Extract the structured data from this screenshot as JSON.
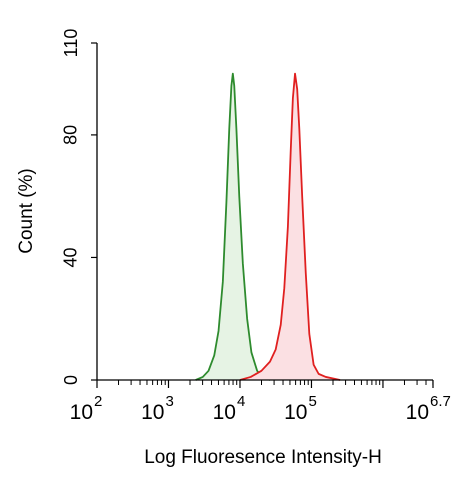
{
  "chart_data": {
    "type": "area",
    "title": "",
    "xlabel": "Log Fluoresence Intensity-H",
    "ylabel": "Count  (%)",
    "x_scale": "log",
    "xlim": [
      2,
      6.7
    ],
    "ylim": [
      0,
      110
    ],
    "y_ticks": [
      {
        "value": 0,
        "label": "0"
      },
      {
        "value": 40,
        "label": "40"
      },
      {
        "value": 80,
        "label": "80"
      },
      {
        "value": 110,
        "label": "110"
      }
    ],
    "x_ticks": [
      {
        "value": 2,
        "base": "10",
        "exp": "2"
      },
      {
        "value": 3,
        "base": "10",
        "exp": "3"
      },
      {
        "value": 4,
        "base": "10",
        "exp": "4"
      },
      {
        "value": 5,
        "base": "10",
        "exp": "5"
      },
      {
        "value": 6.7,
        "base": "10",
        "exp": "6.7"
      }
    ],
    "grid": false,
    "series": [
      {
        "color": "#2e8b2e",
        "fill": "#e6f3e4",
        "points": [
          [
            3.38,
            0
          ],
          [
            3.48,
            1
          ],
          [
            3.56,
            3
          ],
          [
            3.64,
            8
          ],
          [
            3.7,
            16
          ],
          [
            3.76,
            32
          ],
          [
            3.81,
            58
          ],
          [
            3.85,
            82
          ],
          [
            3.88,
            96
          ],
          [
            3.9,
            100
          ],
          [
            3.92,
            96
          ],
          [
            3.95,
            82
          ],
          [
            3.99,
            60
          ],
          [
            4.04,
            38
          ],
          [
            4.1,
            20
          ],
          [
            4.16,
            9
          ],
          [
            4.24,
            3
          ],
          [
            4.32,
            1
          ],
          [
            4.42,
            0
          ]
        ]
      },
      {
        "color": "#e02020",
        "fill": "#fbe0e3",
        "points": [
          [
            4.0,
            0
          ],
          [
            4.15,
            1
          ],
          [
            4.3,
            3
          ],
          [
            4.42,
            6
          ],
          [
            4.5,
            10
          ],
          [
            4.57,
            18
          ],
          [
            4.62,
            30
          ],
          [
            4.67,
            50
          ],
          [
            4.71,
            75
          ],
          [
            4.74,
            92
          ],
          [
            4.77,
            100
          ],
          [
            4.8,
            95
          ],
          [
            4.83,
            82
          ],
          [
            4.87,
            60
          ],
          [
            4.92,
            35
          ],
          [
            4.97,
            15
          ],
          [
            5.03,
            5
          ],
          [
            5.1,
            2
          ],
          [
            5.2,
            1
          ],
          [
            5.4,
            0
          ]
        ]
      }
    ]
  }
}
